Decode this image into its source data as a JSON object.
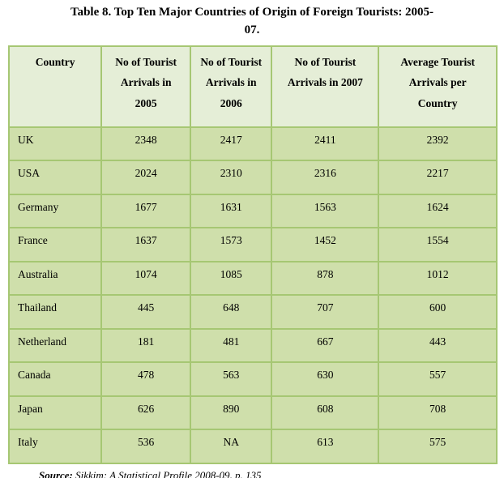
{
  "title_lines": [
    "Table 8. Top Ten Major Countries of Origin of Foreign Tourists: 2005-",
    "07."
  ],
  "table": {
    "headers": [
      {
        "lines": [
          "Country"
        ]
      },
      {
        "lines": [
          "No of Tourist",
          "Arrivals in",
          "2005"
        ]
      },
      {
        "lines": [
          "No of Tourist",
          "Arrivals in",
          "2006"
        ]
      },
      {
        "lines": [
          "No of Tourist",
          "Arrivals in 2007"
        ]
      },
      {
        "lines": [
          "Average Tourist",
          "Arrivals per",
          "Country"
        ]
      }
    ],
    "rows": [
      [
        "UK",
        "2348",
        "2417",
        "2411",
        "2392"
      ],
      [
        "USA",
        "2024",
        "2310",
        "2316",
        "2217"
      ],
      [
        "Germany",
        "1677",
        "1631",
        "1563",
        "1624"
      ],
      [
        "France",
        "1637",
        "1573",
        "1452",
        "1554"
      ],
      [
        "Australia",
        "1074",
        "1085",
        "878",
        "1012"
      ],
      [
        "Thailand",
        "445",
        "648",
        "707",
        "600"
      ],
      [
        "Netherland",
        "181",
        "481",
        "667",
        "443"
      ],
      [
        "Canada",
        "478",
        "563",
        "630",
        "557"
      ],
      [
        "Japan",
        "626",
        "890",
        "608",
        "708"
      ],
      [
        "Italy",
        "536",
        "NA",
        "613",
        "575"
      ]
    ]
  },
  "source": {
    "label": "Source:",
    "text": " Sikkim: A Statistical Profile 2008-09, p. 135"
  },
  "colors": {
    "header_bg": "#e5eed7",
    "body_bg": "#cfdfab",
    "border": "#a6c773",
    "text": "#000000",
    "page_bg": "#ffffff"
  }
}
